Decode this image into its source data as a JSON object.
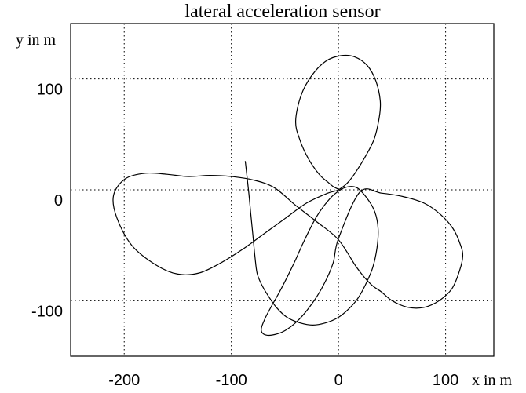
{
  "chart_data": {
    "type": "line",
    "title": "lateral acceleration sensor",
    "xlabel": "x in m",
    "ylabel": "y in m",
    "xlim": [
      -250,
      145
    ],
    "ylim": [
      -150,
      150
    ],
    "xticks": [
      -200,
      -100,
      0,
      100
    ],
    "yticks": [
      -100,
      0,
      100
    ],
    "xtick_labels": [
      "-200",
      "-100",
      "0",
      "100"
    ],
    "ytick_labels": [
      "-100",
      "0",
      "100"
    ],
    "grid": true,
    "series": [
      {
        "x": [
          -87,
          -84,
          -82,
          -80,
          -78,
          -76,
          -72,
          -66,
          -58,
          -48,
          -36,
          -24,
          -12,
          0,
          10,
          18,
          25,
          32,
          36,
          37,
          34,
          27,
          17,
          6,
          -5,
          -14,
          -21,
          -28,
          -34,
          -40,
          -47,
          -55,
          -62,
          -68,
          -72,
          -70,
          -62,
          -50,
          -37,
          -25,
          -14,
          -5,
          0,
          20,
          40,
          60,
          80,
          95,
          107,
          114,
          116,
          113,
          106,
          94,
          80,
          65,
          50,
          40,
          30,
          17,
          0,
          -20,
          -40,
          -60,
          -80,
          -100,
          -120,
          -140,
          -160,
          -180,
          -199,
          -210,
          -207,
          -193,
          -170,
          -150,
          -130,
          -110,
          -90,
          -70,
          -50,
          -30,
          -10,
          0,
          10,
          22,
          33,
          38,
          39,
          35,
          27,
          15,
          2,
          -12,
          -25,
          -35,
          -40,
          -36,
          -28,
          -18,
          -10,
          -5,
          -1,
          0
        ],
        "y": [
          26,
          0,
          -20,
          -40,
          -60,
          -75,
          -85,
          -95,
          -106,
          -115,
          -120,
          -122,
          -120,
          -115,
          -107,
          -98,
          -86,
          -70,
          -52,
          -35,
          -20,
          -8,
          2,
          2,
          -5,
          -15,
          -25,
          -38,
          -50,
          -63,
          -77,
          -92,
          -104,
          -115,
          -125,
          -130,
          -131,
          -127,
          -117,
          -103,
          -86,
          -66,
          -44,
          -2,
          -3,
          -6,
          -12,
          -22,
          -35,
          -50,
          -60,
          -73,
          -89,
          -100,
          -106,
          -106,
          -100,
          -92,
          -85,
          -70,
          -45,
          -29,
          -14,
          2,
          9,
          12,
          13,
          12,
          14,
          15,
          10,
          -5,
          -25,
          -50,
          -68,
          -76,
          -75,
          -66,
          -54,
          -40,
          -26,
          -12,
          -3,
          0,
          8,
          25,
          45,
          65,
          80,
          98,
          112,
          120,
          121,
          116,
          103,
          85,
          62,
          45,
          28,
          14,
          7,
          3,
          1,
          0
        ]
      }
    ]
  }
}
